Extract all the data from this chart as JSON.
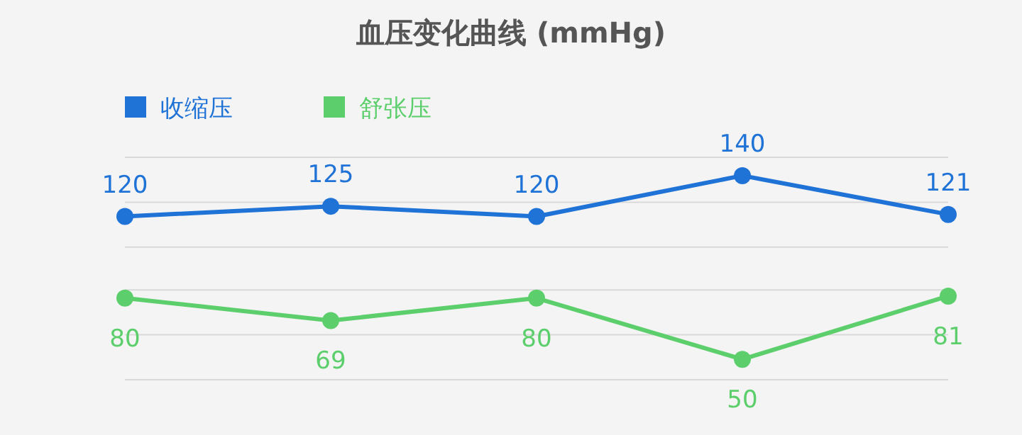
{
  "chart_data": {
    "type": "line",
    "title": "血压变化曲线 (mmHg)",
    "categories": [
      null,
      null,
      null,
      null,
      null
    ],
    "series": [
      {
        "name": "收缩压",
        "color": "#1f72d6",
        "values": [
          120,
          125,
          120,
          140,
          121
        ]
      },
      {
        "name": "舒张压",
        "color": "#5ccf6c",
        "values": [
          80,
          69,
          80,
          50,
          81
        ]
      }
    ],
    "ylim": [
      40,
      149
    ],
    "yticks": [
      {
        "value": 40,
        "label": null
      },
      {
        "value": 62,
        "label": null
      },
      {
        "value": 84,
        "label": null
      },
      {
        "value": 105,
        "label": null
      },
      {
        "value": 127,
        "label": null
      },
      {
        "value": 149,
        "label": null
      }
    ],
    "grid": "y",
    "legend": "top left",
    "marker": "circle",
    "line_style": "solid",
    "data_labels": true
  }
}
